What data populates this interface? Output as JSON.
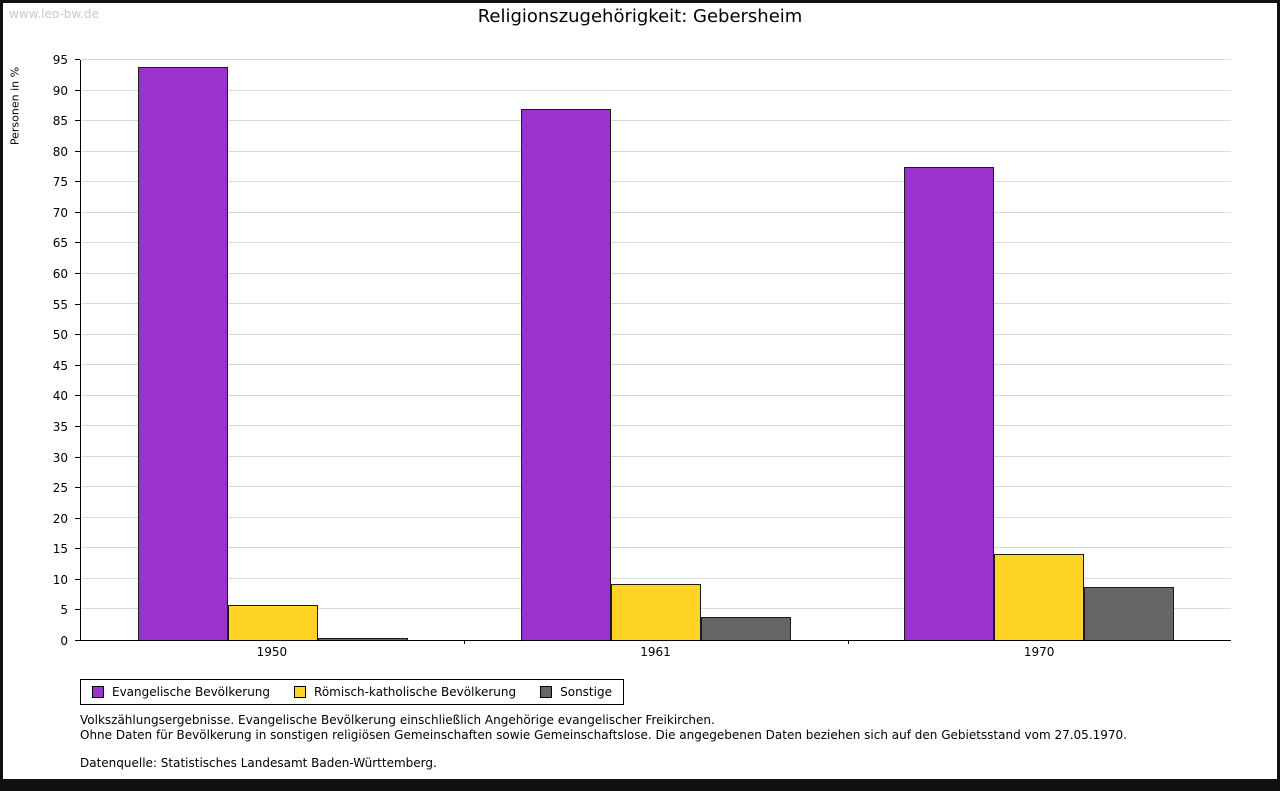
{
  "watermark": "www.leo-bw.de",
  "title": "Religionszugehörigkeit: Gebersheim",
  "chart_data": {
    "type": "bar",
    "title": "Religionszugehörigkeit: Gebersheim",
    "categories": [
      "1950",
      "1961",
      "1970"
    ],
    "series": [
      {
        "name": "Evangelische Bevölkerung",
        "color": "#9933cc",
        "values": [
          93.8,
          87.0,
          77.5
        ]
      },
      {
        "name": "Römisch-katholische Bevölkerung",
        "color": "#ffd424",
        "values": [
          5.7,
          9.2,
          14.1
        ]
      },
      {
        "name": "Sonstige",
        "color": "#666666",
        "values": [
          0.3,
          3.8,
          8.7
        ]
      }
    ],
    "xlabel": "",
    "ylabel": "Personen in %",
    "ylim": [
      0,
      95
    ],
    "ytick_step": 5,
    "grid": true,
    "legend_position": "bottom-left"
  },
  "footnotes": [
    "Volkszählungsergebnisse. Evangelische Bevölkerung einschließlich Angehörige evangelischer Freikirchen.",
    "Ohne Daten für Bevölkerung in sonstigen religiösen Gemeinschaften sowie Gemeinschaftslose. Die angegebenen Daten beziehen sich auf den Gebietsstand vom 27.05.1970.",
    "Datenquelle: Statistisches Landesamt Baden-Württemberg."
  ]
}
